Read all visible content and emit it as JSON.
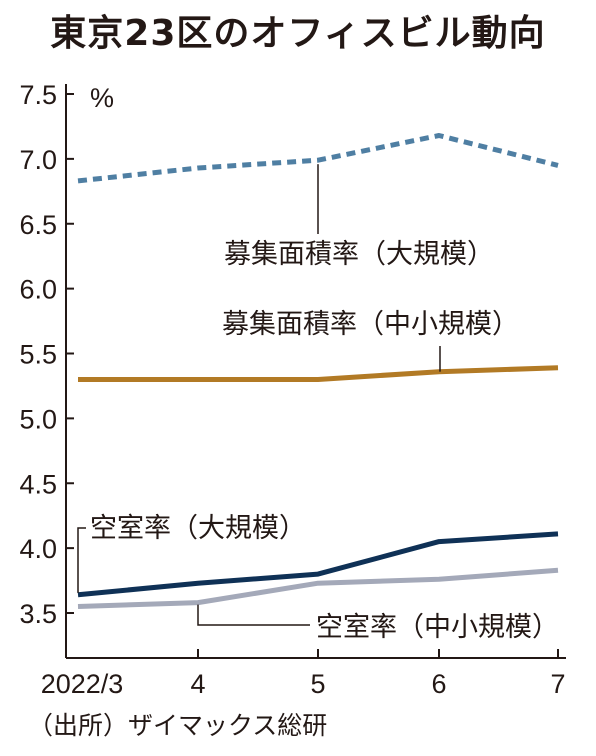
{
  "title": "東京23区のオフィスビル動向",
  "source": "（出所）ザイマックス総研",
  "chart_data": {
    "type": "line",
    "title": "東京23区のオフィスビル動向",
    "ylabel": "%",
    "categories": [
      "2022/3",
      "4",
      "5",
      "6",
      "7"
    ],
    "ylim": [
      3.5,
      7.5
    ],
    "yticks": [
      "3.5",
      "4.0",
      "4.5",
      "5.0",
      "5.5",
      "6.0",
      "6.5",
      "7.0",
      "7.5"
    ],
    "grid": false,
    "series": [
      {
        "name": "募集面積率（大規模）",
        "values": [
          6.83,
          6.93,
          6.99,
          7.18,
          6.95
        ],
        "color": "#4f7fa3",
        "dashed": true
      },
      {
        "name": "募集面積率（中小規模）",
        "values": [
          5.3,
          5.3,
          5.3,
          5.36,
          5.39
        ],
        "color": "#b27a25",
        "dashed": false
      },
      {
        "name": "空室率（大規模）",
        "values": [
          3.64,
          3.73,
          3.8,
          4.05,
          4.11
        ],
        "color": "#0f3156",
        "dashed": false
      },
      {
        "name": "空室率（中小規模）",
        "values": [
          3.55,
          3.58,
          3.73,
          3.76,
          3.83
        ],
        "color": "#a4a9b9",
        "dashed": false
      }
    ]
  }
}
